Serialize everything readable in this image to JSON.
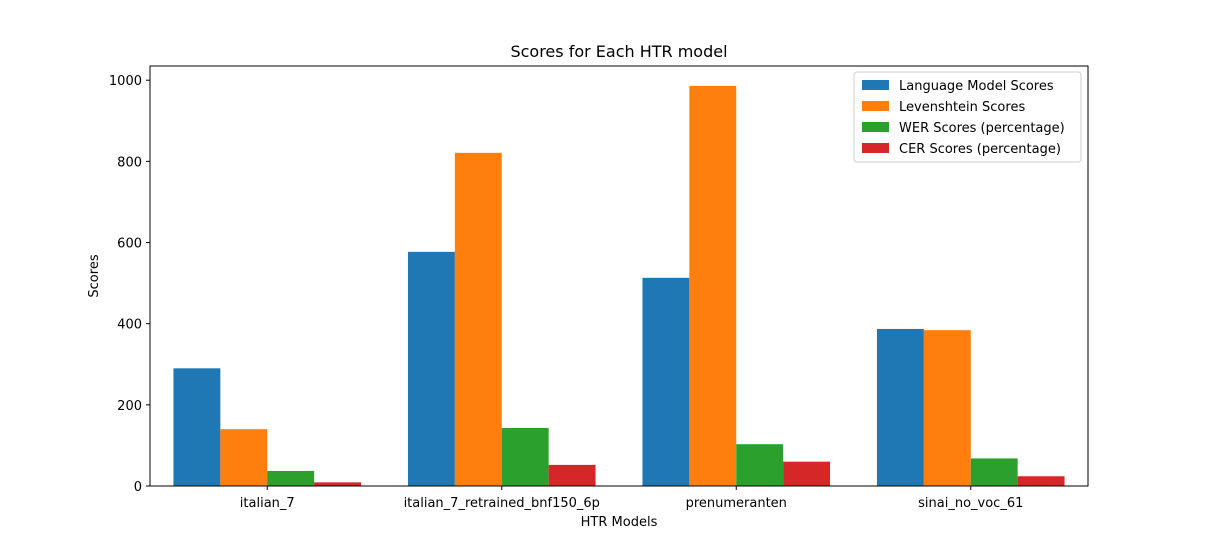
{
  "chart_data": {
    "type": "bar",
    "title": "Scores for Each HTR model",
    "xlabel": "HTR Models",
    "ylabel": "Scores",
    "ylim": [
      0,
      1035
    ],
    "yticks": [
      0,
      200,
      400,
      600,
      800,
      1000
    ],
    "categories": [
      "italian_7",
      "italian_7_retrained_bnf150_6p",
      "prenumeranten",
      "sinai_no_voc_61"
    ],
    "series": [
      {
        "name": "Language Model Scores",
        "color": "#1f77b4",
        "values": [
          290,
          577,
          513,
          387
        ]
      },
      {
        "name": "Levenshtein Scores",
        "color": "#ff7f0e",
        "values": [
          140,
          821,
          986,
          384
        ]
      },
      {
        "name": "WER Scores (percentage)",
        "color": "#2ca02c",
        "values": [
          37,
          143,
          103,
          68
        ]
      },
      {
        "name": "CER Scores (percentage)",
        "color": "#d62728",
        "values": [
          9,
          52,
          60,
          24
        ]
      }
    ],
    "legend_position": "top-right",
    "grid": false
  }
}
